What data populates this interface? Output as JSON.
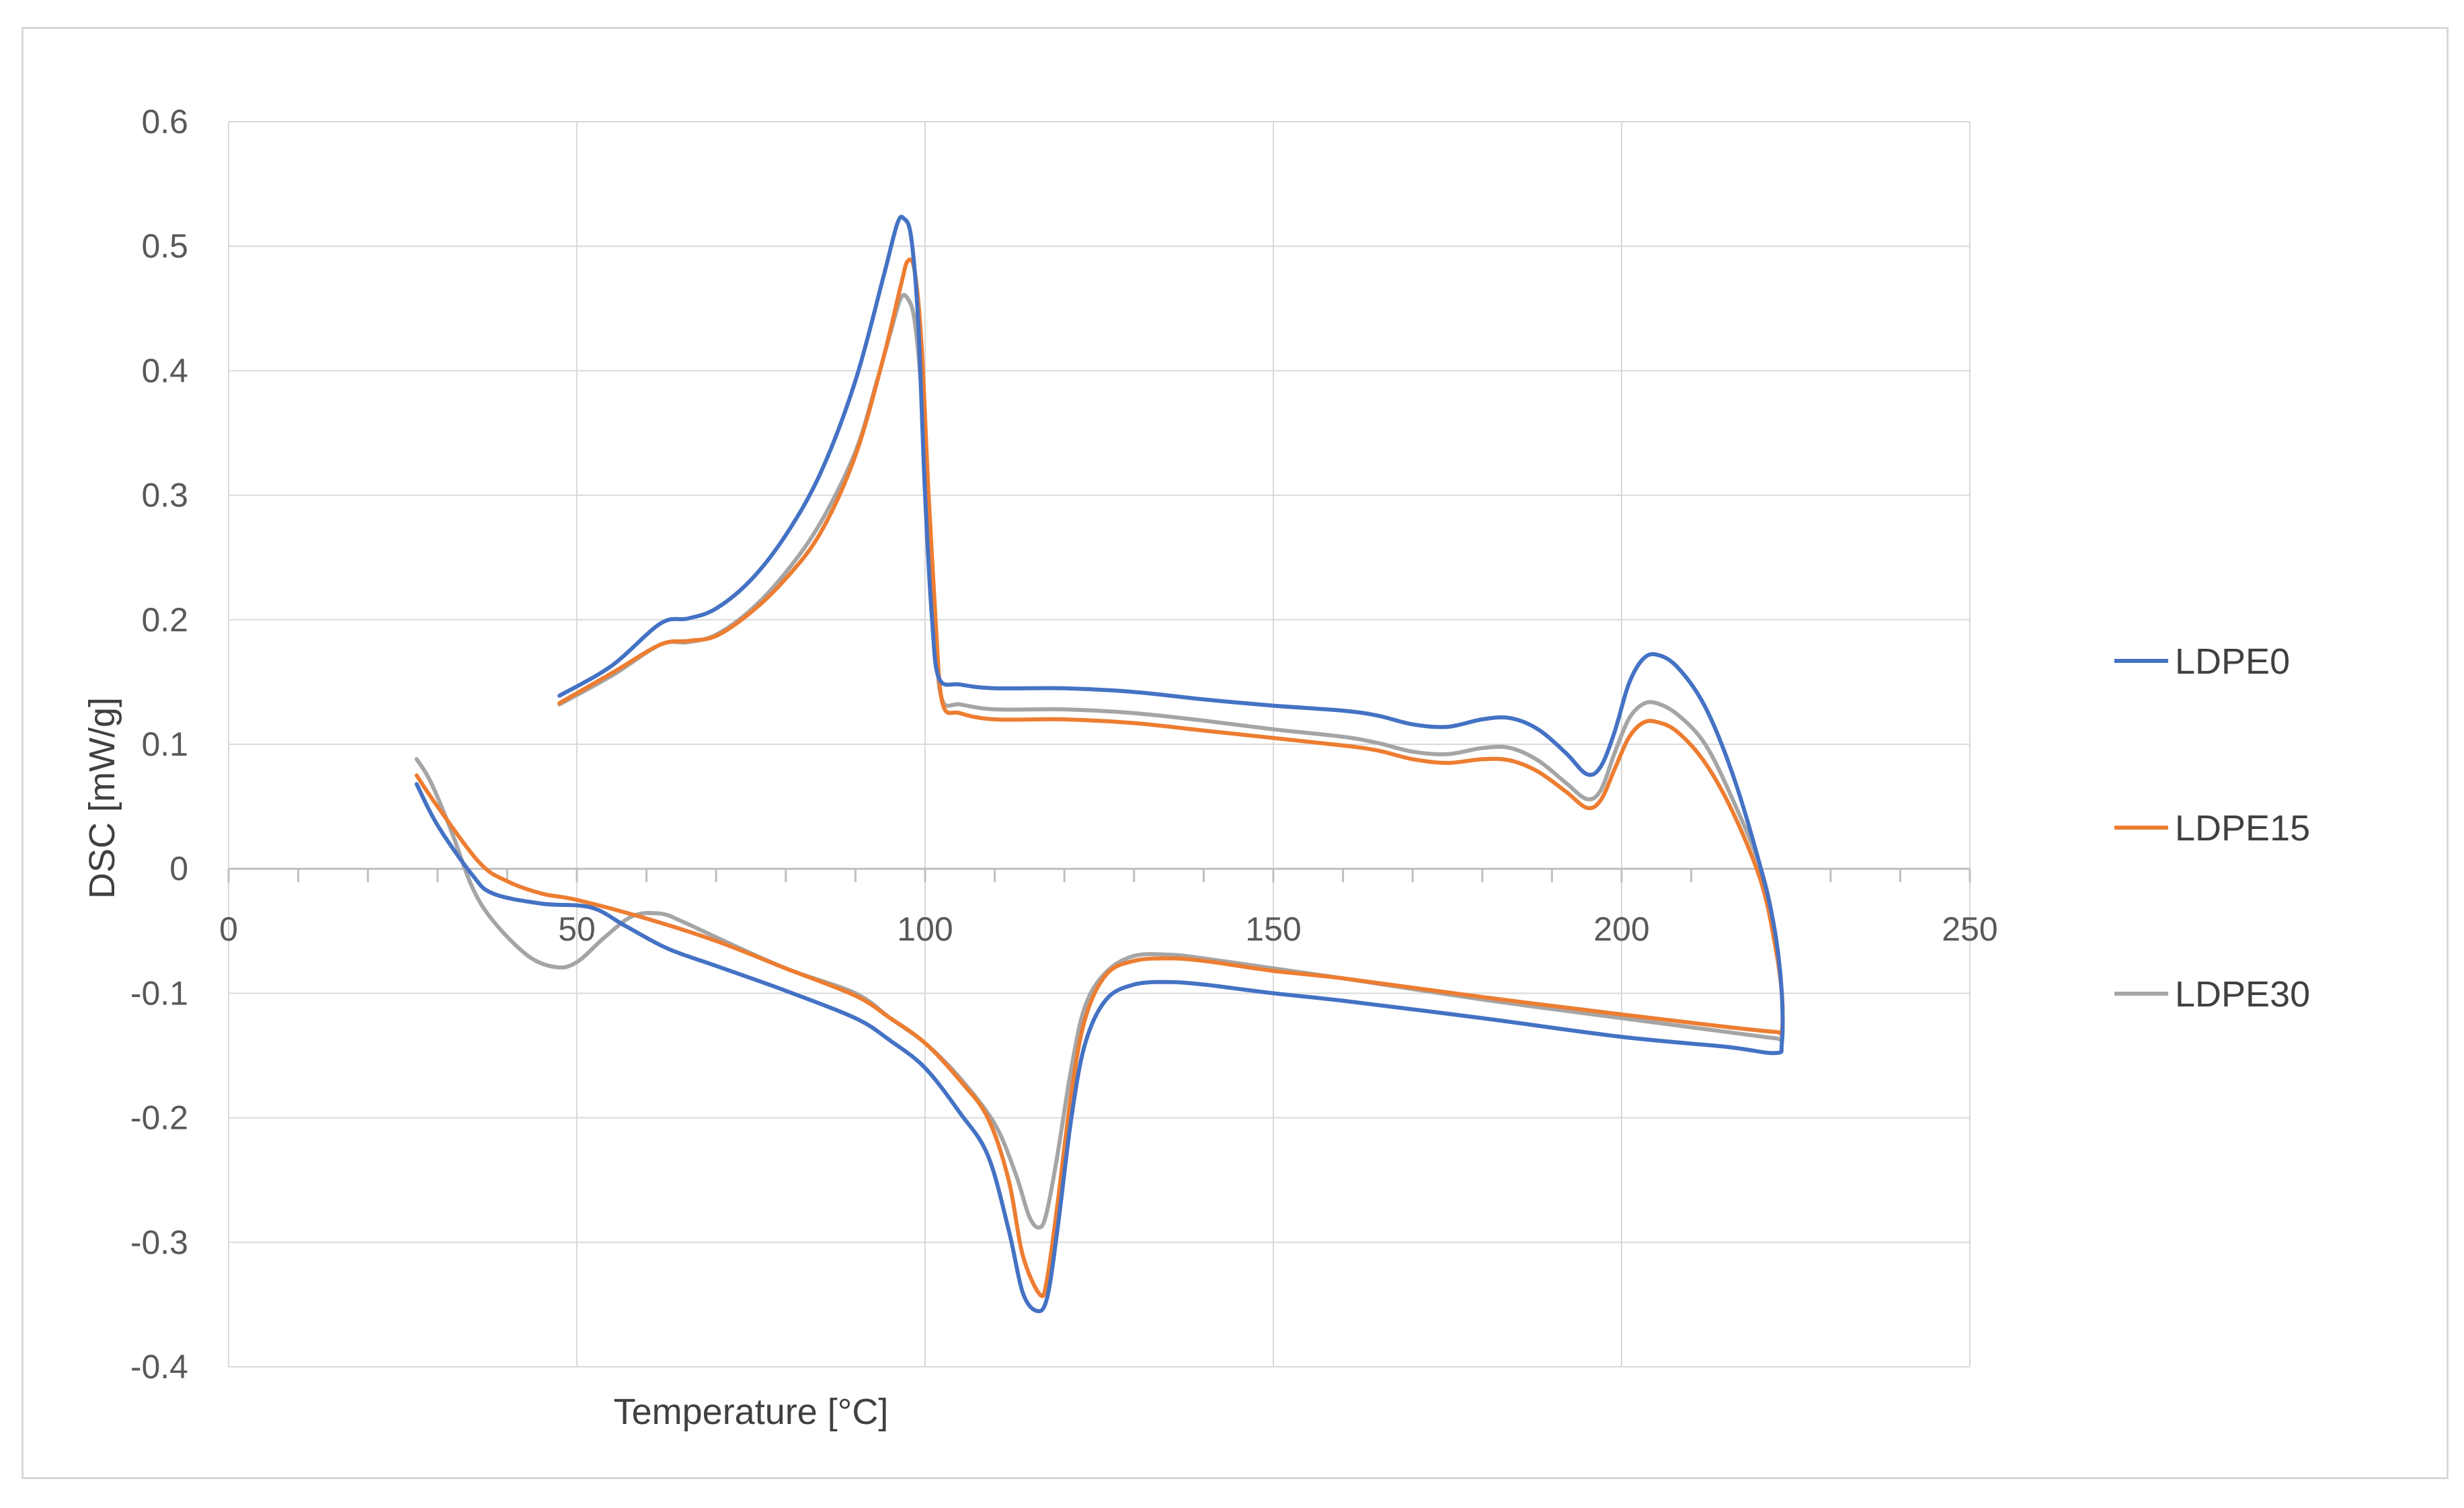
{
  "chart_data": {
    "type": "scatter",
    "title": "",
    "xlabel": "Temperature [°C]",
    "ylabel": "DSC [mW/g]",
    "xlim": [
      0,
      250
    ],
    "ylim": [
      -0.4,
      0.6
    ],
    "xticks": [
      "0",
      "50",
      "100",
      "150",
      "200",
      "250"
    ],
    "yticks": [
      "0.6",
      "0.5",
      "0.4",
      "0.3",
      "0.2",
      "0.1",
      "0",
      "-0.1",
      "-0.2",
      "-0.3",
      "-0.4"
    ],
    "grid": true,
    "legend_position": "right",
    "series": [
      {
        "name": "LDPE0",
        "color": "#4472c4",
        "points": [
          [
            47.5,
            0.139
          ],
          [
            55,
            0.163
          ],
          [
            62,
            0.197
          ],
          [
            66,
            0.201
          ],
          [
            70,
            0.209
          ],
          [
            75,
            0.232
          ],
          [
            80,
            0.268
          ],
          [
            85,
            0.318
          ],
          [
            90,
            0.392
          ],
          [
            94,
            0.475
          ],
          [
            96,
            0.518
          ],
          [
            97,
            0.522
          ],
          [
            98,
            0.507
          ],
          [
            99,
            0.44
          ],
          [
            100,
            0.3
          ],
          [
            101,
            0.2
          ],
          [
            102,
            0.153
          ],
          [
            105,
            0.148
          ],
          [
            110,
            0.145
          ],
          [
            120,
            0.145
          ],
          [
            130,
            0.142
          ],
          [
            140,
            0.136
          ],
          [
            150,
            0.131
          ],
          [
            160,
            0.127
          ],
          [
            165,
            0.123
          ],
          [
            170,
            0.116
          ],
          [
            175,
            0.114
          ],
          [
            180,
            0.12
          ],
          [
            184,
            0.121
          ],
          [
            188,
            0.112
          ],
          [
            192,
            0.093
          ],
          [
            195,
            0.076
          ],
          [
            197,
            0.082
          ],
          [
            199,
            0.11
          ],
          [
            201,
            0.148
          ],
          [
            203,
            0.168
          ],
          [
            205,
            0.172
          ],
          [
            208,
            0.162
          ],
          [
            212,
            0.13
          ],
          [
            216,
            0.075
          ],
          [
            220,
            0.0
          ],
          [
            222,
            -0.05
          ],
          [
            223,
            -0.1
          ],
          [
            223,
            -0.14
          ],
          [
            222,
            -0.148
          ],
          [
            215,
            -0.143
          ],
          [
            200,
            -0.135
          ],
          [
            180,
            -0.12
          ],
          [
            160,
            -0.106
          ],
          [
            150,
            -0.1
          ],
          [
            140,
            -0.093
          ],
          [
            135,
            -0.091
          ],
          [
            130,
            -0.093
          ],
          [
            126,
            -0.105
          ],
          [
            123,
            -0.14
          ],
          [
            121,
            -0.2
          ],
          [
            119,
            -0.29
          ],
          [
            117.5,
            -0.345
          ],
          [
            116,
            -0.355
          ],
          [
            114,
            -0.34
          ],
          [
            112,
            -0.29
          ],
          [
            109,
            -0.23
          ],
          [
            105,
            -0.196
          ],
          [
            100,
            -0.16
          ],
          [
            95,
            -0.138
          ],
          [
            90,
            -0.12
          ],
          [
            80,
            -0.098
          ],
          [
            70,
            -0.078
          ],
          [
            63,
            -0.064
          ],
          [
            57,
            -0.046
          ],
          [
            52,
            -0.031
          ],
          [
            45,
            -0.028
          ],
          [
            38,
            -0.02
          ],
          [
            35,
            -0.005
          ],
          [
            30,
            0.035
          ],
          [
            27,
            0.068
          ]
        ]
      },
      {
        "name": "LDPE15",
        "color": "#ed7d31",
        "points": [
          [
            47.5,
            0.133
          ],
          [
            55,
            0.157
          ],
          [
            62,
            0.18
          ],
          [
            66,
            0.183
          ],
          [
            70,
            0.187
          ],
          [
            75,
            0.206
          ],
          [
            80,
            0.233
          ],
          [
            85,
            0.27
          ],
          [
            90,
            0.332
          ],
          [
            94,
            0.41
          ],
          [
            96.5,
            0.468
          ],
          [
            97.5,
            0.488
          ],
          [
            98.5,
            0.48
          ],
          [
            99.5,
            0.42
          ],
          [
            100.5,
            0.3
          ],
          [
            101.5,
            0.2
          ],
          [
            102.5,
            0.133
          ],
          [
            105,
            0.125
          ],
          [
            110,
            0.12
          ],
          [
            120,
            0.12
          ],
          [
            130,
            0.117
          ],
          [
            140,
            0.111
          ],
          [
            150,
            0.105
          ],
          [
            160,
            0.099
          ],
          [
            165,
            0.095
          ],
          [
            170,
            0.088
          ],
          [
            175,
            0.085
          ],
          [
            180,
            0.088
          ],
          [
            184,
            0.087
          ],
          [
            188,
            0.078
          ],
          [
            192,
            0.062
          ],
          [
            195,
            0.049
          ],
          [
            197,
            0.055
          ],
          [
            199,
            0.08
          ],
          [
            201,
            0.105
          ],
          [
            203,
            0.117
          ],
          [
            205,
            0.118
          ],
          [
            208,
            0.11
          ],
          [
            212,
            0.085
          ],
          [
            216,
            0.045
          ],
          [
            220,
            -0.01
          ],
          [
            222,
            -0.06
          ],
          [
            223,
            -0.1
          ],
          [
            223,
            -0.13
          ],
          [
            222,
            -0.131
          ],
          [
            215,
            -0.127
          ],
          [
            200,
            -0.117
          ],
          [
            180,
            -0.103
          ],
          [
            160,
            -0.088
          ],
          [
            150,
            -0.082
          ],
          [
            140,
            -0.074
          ],
          [
            135,
            -0.072
          ],
          [
            130,
            -0.074
          ],
          [
            126,
            -0.085
          ],
          [
            123,
            -0.12
          ],
          [
            121,
            -0.18
          ],
          [
            119,
            -0.27
          ],
          [
            117.5,
            -0.33
          ],
          [
            116.5,
            -0.342
          ],
          [
            114,
            -0.31
          ],
          [
            112,
            -0.25
          ],
          [
            109,
            -0.2
          ],
          [
            105,
            -0.17
          ],
          [
            100,
            -0.14
          ],
          [
            95,
            -0.12
          ],
          [
            90,
            -0.102
          ],
          [
            80,
            -0.08
          ],
          [
            70,
            -0.058
          ],
          [
            60,
            -0.04
          ],
          [
            50,
            -0.025
          ],
          [
            45,
            -0.02
          ],
          [
            40,
            -0.01
          ],
          [
            36,
            0.005
          ],
          [
            30,
            0.05
          ],
          [
            27,
            0.075
          ]
        ]
      },
      {
        "name": "LDPE30",
        "color": "#a5a5a5",
        "points": [
          [
            47.5,
            0.132
          ],
          [
            55,
            0.155
          ],
          [
            62,
            0.18
          ],
          [
            66,
            0.182
          ],
          [
            70,
            0.188
          ],
          [
            75,
            0.208
          ],
          [
            80,
            0.238
          ],
          [
            85,
            0.278
          ],
          [
            90,
            0.335
          ],
          [
            93,
            0.39
          ],
          [
            95,
            0.43
          ],
          [
            96.5,
            0.458
          ],
          [
            97.5,
            0.458
          ],
          [
            98.5,
            0.44
          ],
          [
            99.5,
            0.38
          ],
          [
            100.5,
            0.27
          ],
          [
            101.5,
            0.18
          ],
          [
            102.5,
            0.135
          ],
          [
            105,
            0.132
          ],
          [
            110,
            0.128
          ],
          [
            120,
            0.128
          ],
          [
            130,
            0.125
          ],
          [
            140,
            0.119
          ],
          [
            150,
            0.112
          ],
          [
            160,
            0.106
          ],
          [
            165,
            0.101
          ],
          [
            170,
            0.094
          ],
          [
            175,
            0.092
          ],
          [
            180,
            0.097
          ],
          [
            184,
            0.097
          ],
          [
            188,
            0.087
          ],
          [
            192,
            0.069
          ],
          [
            195,
            0.056
          ],
          [
            197,
            0.063
          ],
          [
            199,
            0.093
          ],
          [
            201,
            0.12
          ],
          [
            203,
            0.132
          ],
          [
            205,
            0.133
          ],
          [
            208,
            0.124
          ],
          [
            212,
            0.1
          ],
          [
            216,
            0.055
          ],
          [
            220,
            0.0
          ],
          [
            222,
            -0.05
          ],
          [
            223,
            -0.1
          ],
          [
            223,
            -0.135
          ],
          [
            222,
            -0.136
          ],
          [
            215,
            -0.131
          ],
          [
            200,
            -0.12
          ],
          [
            180,
            -0.105
          ],
          [
            160,
            -0.088
          ],
          [
            150,
            -0.08
          ],
          [
            140,
            -0.072
          ],
          [
            135,
            -0.069
          ],
          [
            130,
            -0.07
          ],
          [
            126,
            -0.083
          ],
          [
            123,
            -0.11
          ],
          [
            121,
            -0.16
          ],
          [
            119,
            -0.23
          ],
          [
            117.5,
            -0.275
          ],
          [
            116.5,
            -0.288
          ],
          [
            115,
            -0.28
          ],
          [
            113,
            -0.245
          ],
          [
            110,
            -0.205
          ],
          [
            105,
            -0.168
          ],
          [
            100,
            -0.14
          ],
          [
            95,
            -0.12
          ],
          [
            90,
            -0.1
          ],
          [
            80,
            -0.08
          ],
          [
            70,
            -0.055
          ],
          [
            65,
            -0.042
          ],
          [
            62,
            -0.036
          ],
          [
            58,
            -0.038
          ],
          [
            54,
            -0.055
          ],
          [
            50,
            -0.075
          ],
          [
            47,
            -0.079
          ],
          [
            43,
            -0.07
          ],
          [
            38,
            -0.042
          ],
          [
            35,
            -0.015
          ],
          [
            32,
            0.03
          ],
          [
            29,
            0.07
          ],
          [
            27,
            0.088
          ]
        ]
      }
    ]
  }
}
